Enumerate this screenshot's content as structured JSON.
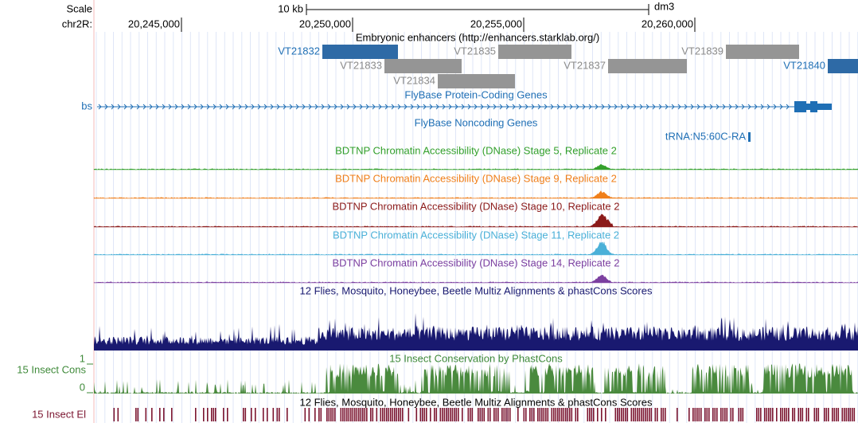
{
  "ruler": {
    "scale_label": "Scale",
    "chrom_label": "chr2R:",
    "scale_bar": "10 kb",
    "assembly": "dm3",
    "positions": [
      "20,245,000",
      "20,250,000",
      "20,255,000",
      "20,260,000"
    ]
  },
  "enhancers": {
    "title": "Embryonic enhancers (http://enhancers.starklab.org/)",
    "items": [
      "VT21832",
      "VT21833",
      "VT21834",
      "VT21835",
      "VT21837",
      "VT21839",
      "VT21840"
    ]
  },
  "coding_genes": {
    "title": "FlyBase Protein-Coding Genes",
    "label": "bs"
  },
  "noncoding_genes": {
    "title": "FlyBase Noncoding Genes",
    "label": "tRNA:N5:60C-RA"
  },
  "dnase_tracks": [
    "BDTNP Chromatin Accessibility (DNase) Stage 5, Replicate 2",
    "BDTNP Chromatin Accessibility (DNase) Stage 9, Replicate 2",
    "BDTNP Chromatin Accessibility (DNase) Stage 10, Replicate 2",
    "BDTNP Chromatin Accessibility (DNase) Stage 11, Replicate 2",
    "BDTNP Chromatin Accessibility (DNase) Stage 14, Replicate 2"
  ],
  "multiz": {
    "title": "12 Flies, Mosquito, Honeybee, Beetle Multiz Alignments & phastCons Scores"
  },
  "conservation": {
    "title": "15 Insect Conservation by PhastCons",
    "label": "15 Insect Cons",
    "max_label": "1",
    "min_label": "0"
  },
  "elements": {
    "title": "12 Flies, Mosquito, Honeybee, Beetle Multiz Alignments & phastCons Scores",
    "label": "15 Insect El"
  }
}
